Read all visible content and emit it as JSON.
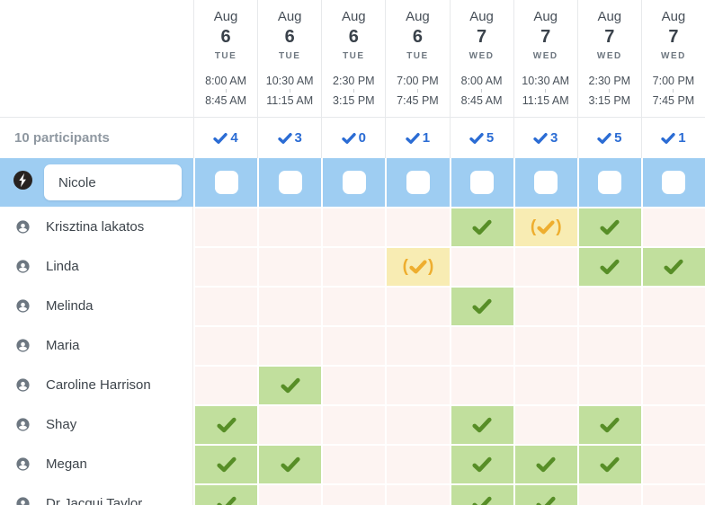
{
  "header": {
    "columns": [
      {
        "month": "Aug",
        "day": "6",
        "weekday": "TUE",
        "start_time": "8:00 AM",
        "end_time": "8:45 AM",
        "yes_count": "4"
      },
      {
        "month": "Aug",
        "day": "6",
        "weekday": "TUE",
        "start_time": "10:30 AM",
        "end_time": "11:15 AM",
        "yes_count": "3"
      },
      {
        "month": "Aug",
        "day": "6",
        "weekday": "TUE",
        "start_time": "2:30 PM",
        "end_time": "3:15 PM",
        "yes_count": "0"
      },
      {
        "month": "Aug",
        "day": "6",
        "weekday": "TUE",
        "start_time": "7:00 PM",
        "end_time": "7:45 PM",
        "yes_count": "1"
      },
      {
        "month": "Aug",
        "day": "7",
        "weekday": "WED",
        "start_time": "8:00 AM",
        "end_time": "8:45 AM",
        "yes_count": "5"
      },
      {
        "month": "Aug",
        "day": "7",
        "weekday": "WED",
        "start_time": "10:30 AM",
        "end_time": "11:15 AM",
        "yes_count": "3"
      },
      {
        "month": "Aug",
        "day": "7",
        "weekday": "WED",
        "start_time": "2:30 PM",
        "end_time": "3:15 PM",
        "yes_count": "5"
      },
      {
        "month": "Aug",
        "day": "7",
        "weekday": "WED",
        "start_time": "7:00 PM",
        "end_time": "7:45 PM",
        "yes_count": "1"
      }
    ]
  },
  "summary": {
    "participants_label": "10 participants"
  },
  "current_user": {
    "name": "Nicole"
  },
  "participants": [
    {
      "name": "Krisztina lakatos",
      "votes": [
        "no",
        "no",
        "no",
        "no",
        "yes",
        "ifneedbe",
        "yes",
        "no"
      ]
    },
    {
      "name": "Linda",
      "votes": [
        "no",
        "no",
        "no",
        "ifneedbe",
        "no",
        "no",
        "yes",
        "yes"
      ]
    },
    {
      "name": "Melinda",
      "votes": [
        "no",
        "no",
        "no",
        "no",
        "yes",
        "no",
        "no",
        "no"
      ]
    },
    {
      "name": "Maria",
      "votes": [
        "no",
        "no",
        "no",
        "no",
        "no",
        "no",
        "no",
        "no"
      ]
    },
    {
      "name": "Caroline Harrison",
      "votes": [
        "no",
        "yes",
        "no",
        "no",
        "no",
        "no",
        "no",
        "no"
      ]
    },
    {
      "name": "Shay",
      "votes": [
        "yes",
        "no",
        "no",
        "no",
        "yes",
        "no",
        "yes",
        "no"
      ]
    },
    {
      "name": "Megan",
      "votes": [
        "yes",
        "yes",
        "no",
        "no",
        "yes",
        "yes",
        "yes",
        "no"
      ]
    },
    {
      "name": "Dr Jacqui Taylor",
      "votes": [
        "yes",
        "no",
        "no",
        "no",
        "yes",
        "yes",
        "no",
        "no"
      ]
    }
  ],
  "colors": {
    "yes_bg": "#c1df9d",
    "yes_check": "#578e27",
    "ifneedbe_bg": "#f8ecb3",
    "ifneedbe_mark": "#eeae2f",
    "no_bg": "#fdf4f2",
    "selected_row_bg": "#9ecdf2",
    "count_blue": "#2b6cd4",
    "person_icon": "#6d7781"
  }
}
